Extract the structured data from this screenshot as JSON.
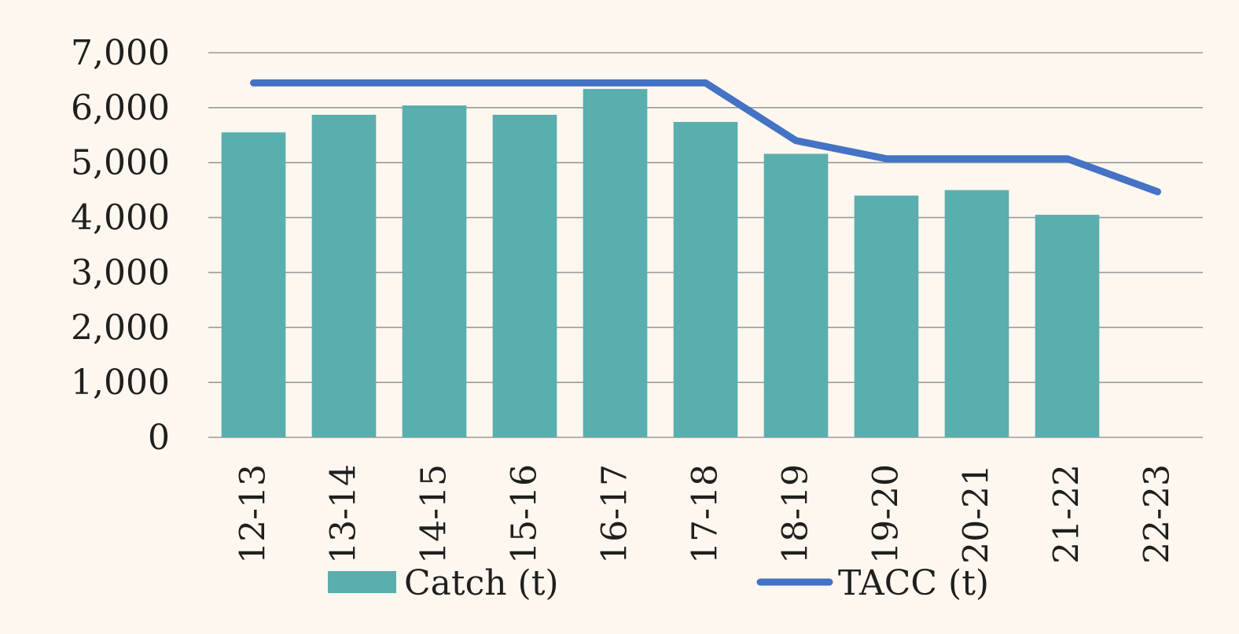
{
  "chart_data": {
    "type": "bar",
    "title": "",
    "xlabel": "",
    "ylabel": "",
    "categories": [
      "12-13",
      "13-14",
      "14-15",
      "15-16",
      "16-17",
      "17-18",
      "18-19",
      "19-20",
      "20-21",
      "21-22",
      "22-23"
    ],
    "ylim": [
      0,
      7000
    ],
    "yticks": [
      0,
      1000,
      2000,
      3000,
      4000,
      5000,
      6000,
      7000
    ],
    "ytick_labels": [
      "0",
      "1,000",
      "2,000",
      "3,000",
      "4,000",
      "5,000",
      "6,000",
      "7,000"
    ],
    "grid": true,
    "legend_position": "bottom",
    "series": [
      {
        "name": "Catch (t)",
        "type": "bar",
        "color": "#5aaeae",
        "values": [
          5550,
          5870,
          6040,
          5870,
          6340,
          5740,
          5160,
          4400,
          4500,
          4050,
          null
        ]
      },
      {
        "name": "TACC (t)",
        "type": "line",
        "color": "#4472c4",
        "values": [
          6450,
          6450,
          6450,
          6450,
          6450,
          6450,
          5400,
          5070,
          5070,
          5070,
          4470
        ]
      }
    ]
  }
}
